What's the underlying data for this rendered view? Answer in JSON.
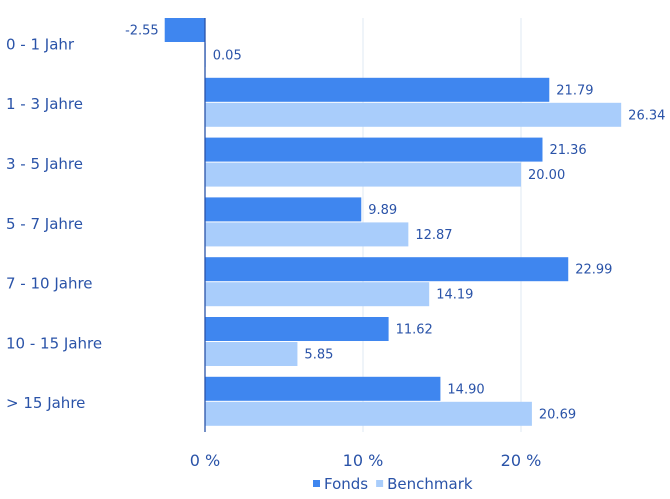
{
  "chart_data": {
    "type": "bar",
    "orientation": "horizontal",
    "categories": [
      "0 - 1 Jahr",
      "1 - 3 Jahre",
      "3 - 5 Jahre",
      "5 - 7 Jahre",
      "7 - 10 Jahre",
      "10 - 15 Jahre",
      "> 15 Jahre"
    ],
    "series": [
      {
        "name": "Fonds",
        "color": "#3f86ef",
        "values": [
          -2.55,
          21.79,
          21.36,
          9.89,
          22.99,
          11.62,
          14.9
        ],
        "labels": [
          "-2.55",
          "21.79",
          "21.36",
          "9.89",
          "22.99",
          "11.62",
          "14.90"
        ]
      },
      {
        "name": "Benchmark",
        "color": "#a9cdfb",
        "values": [
          0.05,
          26.34,
          20.0,
          12.87,
          14.19,
          5.85,
          20.69
        ],
        "labels": [
          "0.05",
          "26.34",
          "20.00",
          "12.87",
          "14.19",
          "5.85",
          "20.69"
        ]
      }
    ],
    "xticks": [
      0,
      10,
      20
    ],
    "xtick_labels": [
      "0 %",
      "10 %",
      "20 %"
    ],
    "xlim": [
      -2.55,
      26.34
    ],
    "grid": true,
    "legend": "bottom"
  }
}
